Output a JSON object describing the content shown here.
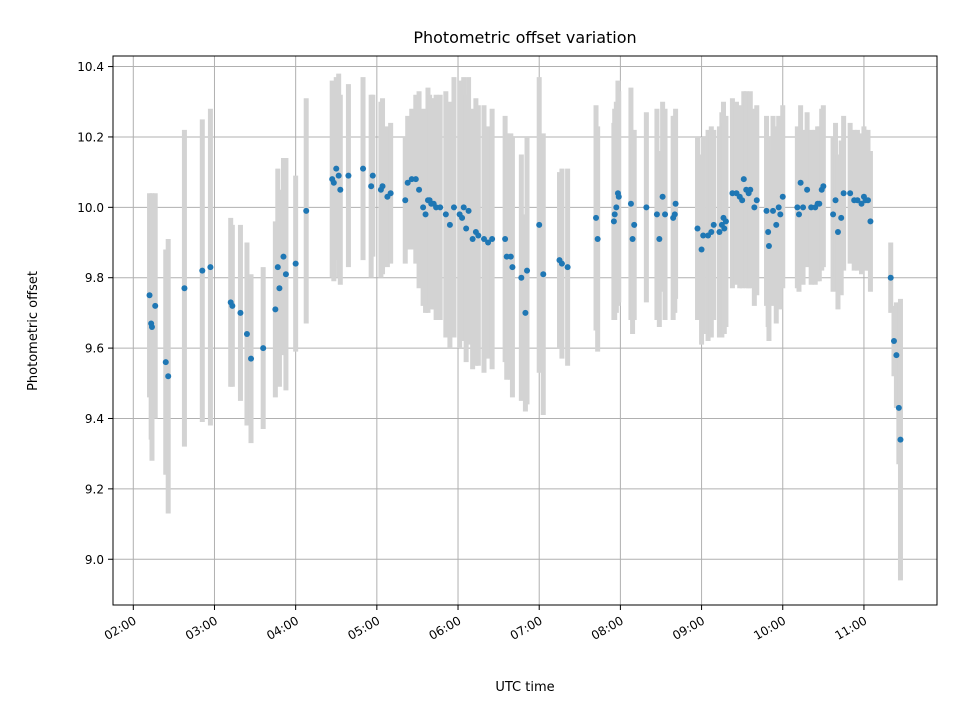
{
  "chart_data": {
    "type": "scatter",
    "title": "Photometric offset variation",
    "xlabel": "UTC time",
    "ylabel": "Photometric offset",
    "x_unit": "UTC hours",
    "xlim": [
      1.75,
      11.9
    ],
    "ylim": [
      8.87,
      10.43
    ],
    "x_ticks": [
      {
        "value": 2,
        "label": "02:00"
      },
      {
        "value": 3,
        "label": "03:00"
      },
      {
        "value": 4,
        "label": "04:00"
      },
      {
        "value": 5,
        "label": "05:00"
      },
      {
        "value": 6,
        "label": "06:00"
      },
      {
        "value": 7,
        "label": "07:00"
      },
      {
        "value": 8,
        "label": "08:00"
      },
      {
        "value": 9,
        "label": "09:00"
      },
      {
        "value": 10,
        "label": "10:00"
      },
      {
        "value": 11,
        "label": "11:00"
      }
    ],
    "y_ticks": [
      {
        "value": 9.0,
        "label": "9.0"
      },
      {
        "value": 9.2,
        "label": "9.2"
      },
      {
        "value": 9.4,
        "label": "9.4"
      },
      {
        "value": 9.6,
        "label": "9.6"
      },
      {
        "value": 9.8,
        "label": "9.8"
      },
      {
        "value": 10.0,
        "label": "10.0"
      },
      {
        "value": 10.2,
        "label": "10.2"
      },
      {
        "value": 10.4,
        "label": "10.4"
      }
    ],
    "grid": true,
    "colors": {
      "points": "#1f77b4",
      "errorbars": "#d3d3d3",
      "grid": "#b0b0b0",
      "axes": "#000000"
    },
    "series": [
      {
        "points": [
          [
            2.2,
            9.75,
            0.29
          ],
          [
            2.22,
            9.67,
            0.33
          ],
          [
            2.23,
            9.66,
            0.38
          ],
          [
            2.27,
            9.72,
            0.32
          ],
          [
            2.4,
            9.56,
            0.32
          ],
          [
            2.43,
            9.52,
            0.39
          ],
          [
            2.63,
            9.77,
            0.45
          ],
          [
            2.85,
            9.82,
            0.43
          ],
          [
            2.95,
            9.83,
            0.45
          ],
          [
            3.2,
            9.73,
            0.24
          ],
          [
            3.22,
            9.72,
            0.23
          ],
          [
            3.32,
            9.7,
            0.25
          ],
          [
            3.4,
            9.64,
            0.26
          ],
          [
            3.45,
            9.57,
            0.24
          ],
          [
            3.6,
            9.6,
            0.23
          ],
          [
            3.75,
            9.71,
            0.25
          ],
          [
            3.78,
            9.83,
            0.28
          ],
          [
            3.8,
            9.77,
            0.28
          ],
          [
            3.85,
            9.86,
            0.28
          ],
          [
            3.88,
            9.81,
            0.33
          ],
          [
            4.0,
            9.84,
            0.25
          ],
          [
            4.13,
            9.99,
            0.32
          ],
          [
            4.45,
            10.08,
            0.28
          ],
          [
            4.47,
            10.07,
            0.28
          ],
          [
            4.5,
            10.11,
            0.26
          ],
          [
            4.53,
            10.09,
            0.29
          ],
          [
            4.55,
            10.05,
            0.27
          ],
          [
            4.65,
            10.09,
            0.26
          ],
          [
            4.83,
            10.11,
            0.26
          ],
          [
            4.93,
            10.06,
            0.26
          ],
          [
            4.95,
            10.09,
            0.23
          ],
          [
            5.05,
            10.05,
            0.25
          ],
          [
            5.07,
            10.06,
            0.25
          ],
          [
            5.13,
            10.03,
            0.2
          ],
          [
            5.17,
            10.04,
            0.2
          ],
          [
            5.35,
            10.02,
            0.18
          ],
          [
            5.38,
            10.07,
            0.19
          ],
          [
            5.43,
            10.08,
            0.2
          ],
          [
            5.48,
            10.08,
            0.24
          ],
          [
            5.52,
            10.05,
            0.28
          ],
          [
            5.57,
            10.0,
            0.28
          ],
          [
            5.6,
            9.98,
            0.28
          ],
          [
            5.63,
            10.02,
            0.32
          ],
          [
            5.65,
            10.02,
            0.3
          ],
          [
            5.67,
            10.01,
            0.3
          ],
          [
            5.7,
            10.01,
            0.3
          ],
          [
            5.73,
            10.0,
            0.32
          ],
          [
            5.78,
            10.0,
            0.32
          ],
          [
            5.85,
            9.98,
            0.35
          ],
          [
            5.9,
            9.95,
            0.35
          ],
          [
            5.95,
            10.0,
            0.37
          ],
          [
            6.02,
            9.98,
            0.38
          ],
          [
            6.05,
            9.97,
            0.35
          ],
          [
            6.07,
            10.0,
            0.37
          ],
          [
            6.1,
            9.94,
            0.38
          ],
          [
            6.13,
            9.99,
            0.38
          ],
          [
            6.18,
            9.91,
            0.37
          ],
          [
            6.22,
            9.93,
            0.38
          ],
          [
            6.25,
            9.92,
            0.37
          ],
          [
            6.32,
            9.91,
            0.38
          ],
          [
            6.37,
            9.9,
            0.33
          ],
          [
            6.42,
            9.91,
            0.37
          ],
          [
            6.58,
            9.91,
            0.35
          ],
          [
            6.6,
            9.86,
            0.35
          ],
          [
            6.65,
            9.86,
            0.35
          ],
          [
            6.67,
            9.83,
            0.37
          ],
          [
            6.78,
            9.8,
            0.35
          ],
          [
            6.83,
            9.7,
            0.28
          ],
          [
            6.85,
            9.82,
            0.38
          ],
          [
            7.0,
            9.95,
            0.42
          ],
          [
            7.05,
            9.81,
            0.4
          ],
          [
            7.25,
            9.85,
            0.25
          ],
          [
            7.28,
            9.84,
            0.27
          ],
          [
            7.35,
            9.83,
            0.28
          ],
          [
            7.7,
            9.97,
            0.32
          ],
          [
            7.72,
            9.91,
            0.32
          ],
          [
            7.92,
            9.96,
            0.28
          ],
          [
            7.93,
            9.98,
            0.3
          ],
          [
            7.95,
            10.0,
            0.3
          ],
          [
            7.97,
            10.04,
            0.32
          ],
          [
            7.98,
            10.03,
            0.3
          ],
          [
            8.13,
            10.01,
            0.33
          ],
          [
            8.15,
            9.91,
            0.27
          ],
          [
            8.17,
            9.95,
            0.27
          ],
          [
            8.32,
            10.0,
            0.27
          ],
          [
            8.45,
            9.98,
            0.3
          ],
          [
            8.48,
            9.91,
            0.25
          ],
          [
            8.52,
            10.03,
            0.27
          ],
          [
            8.55,
            9.98,
            0.3
          ],
          [
            8.65,
            9.97,
            0.29
          ],
          [
            8.67,
            9.98,
            0.28
          ],
          [
            8.68,
            10.01,
            0.27
          ],
          [
            8.95,
            9.94,
            0.26
          ],
          [
            9.0,
            9.88,
            0.27
          ],
          [
            9.02,
            9.92,
            0.28
          ],
          [
            9.08,
            9.92,
            0.3
          ],
          [
            9.12,
            9.93,
            0.3
          ],
          [
            9.15,
            9.95,
            0.27
          ],
          [
            9.22,
            9.93,
            0.3
          ],
          [
            9.25,
            9.95,
            0.32
          ],
          [
            9.27,
            9.97,
            0.33
          ],
          [
            9.28,
            9.94,
            0.3
          ],
          [
            9.3,
            9.96,
            0.3
          ],
          [
            9.38,
            10.04,
            0.27
          ],
          [
            9.43,
            10.04,
            0.26
          ],
          [
            9.47,
            10.03,
            0.26
          ],
          [
            9.5,
            10.02,
            0.25
          ],
          [
            9.52,
            10.08,
            0.25
          ],
          [
            9.55,
            10.05,
            0.28
          ],
          [
            9.58,
            10.04,
            0.27
          ],
          [
            9.6,
            10.05,
            0.28
          ],
          [
            9.65,
            10.0,
            0.28
          ],
          [
            9.68,
            10.02,
            0.27
          ],
          [
            9.8,
            9.99,
            0.27
          ],
          [
            9.82,
            9.93,
            0.27
          ],
          [
            9.83,
            9.89,
            0.27
          ],
          [
            9.88,
            9.99,
            0.27
          ],
          [
            9.92,
            9.95,
            0.28
          ],
          [
            9.95,
            10.0,
            0.26
          ],
          [
            9.97,
            9.98,
            0.27
          ],
          [
            10.0,
            10.03,
            0.26
          ],
          [
            10.18,
            10.0,
            0.23
          ],
          [
            10.2,
            9.98,
            0.22
          ],
          [
            10.22,
            10.07,
            0.22
          ],
          [
            10.25,
            10.0,
            0.22
          ],
          [
            10.3,
            10.05,
            0.22
          ],
          [
            10.35,
            10.0,
            0.22
          ],
          [
            10.4,
            10.0,
            0.22
          ],
          [
            10.43,
            10.01,
            0.22
          ],
          [
            10.45,
            10.01,
            0.22
          ],
          [
            10.48,
            10.05,
            0.23
          ],
          [
            10.5,
            10.06,
            0.23
          ],
          [
            10.62,
            9.98,
            0.22
          ],
          [
            10.65,
            10.02,
            0.22
          ],
          [
            10.68,
            9.93,
            0.22
          ],
          [
            10.72,
            9.97,
            0.22
          ],
          [
            10.75,
            10.04,
            0.22
          ],
          [
            10.83,
            10.04,
            0.2
          ],
          [
            10.88,
            10.02,
            0.2
          ],
          [
            10.92,
            10.02,
            0.2
          ],
          [
            10.97,
            10.01,
            0.2
          ],
          [
            11.0,
            10.03,
            0.2
          ],
          [
            11.02,
            10.02,
            0.2
          ],
          [
            11.05,
            10.02,
            0.2
          ],
          [
            11.08,
            9.96,
            0.2
          ],
          [
            11.33,
            9.8,
            0.1
          ],
          [
            11.37,
            9.62,
            0.1
          ],
          [
            11.4,
            9.58,
            0.15
          ],
          [
            11.43,
            9.43,
            0.16
          ],
          [
            11.45,
            9.34,
            0.4
          ]
        ]
      }
    ]
  }
}
